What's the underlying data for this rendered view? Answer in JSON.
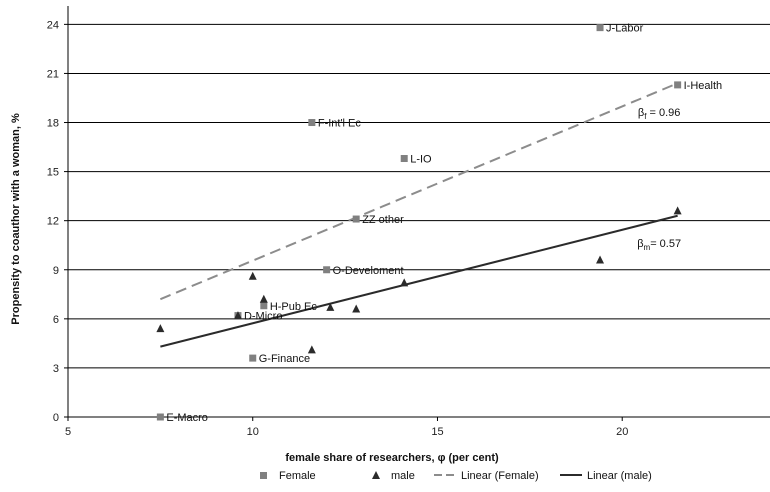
{
  "chart_data": {
    "type": "scatter",
    "title": "",
    "xlabel": "female share of researchers, φ (per cent)",
    "ylabel": "Propensity to coauthor with a woman, %",
    "xlim": [
      5,
      24
    ],
    "ylim": [
      0,
      25
    ],
    "x_ticks": [
      5,
      10,
      15,
      20
    ],
    "y_ticks": [
      0,
      3,
      6,
      9,
      12,
      15,
      18,
      21,
      24
    ],
    "grid": "horizontal",
    "legend_position": "bottom",
    "colors": {
      "female": "#808080",
      "male": "#2b2b2b",
      "trend_female": "#8c8c8c",
      "trend_male": "#2b2b2b",
      "grid": "#000000"
    },
    "series": [
      {
        "name": "Female",
        "marker": "square",
        "points": [
          {
            "x": 7.5,
            "y": 0.0,
            "label": "E-Macro"
          },
          {
            "x": 9.6,
            "y": 6.2,
            "label": "D-Micro"
          },
          {
            "x": 10.0,
            "y": 3.6,
            "label": "G-Finance"
          },
          {
            "x": 10.3,
            "y": 6.8,
            "label": "H-Pub Ec"
          },
          {
            "x": 11.6,
            "y": 18.0,
            "label": "F-Int'l Ec"
          },
          {
            "x": 12.0,
            "y": 9.0,
            "label": "O-Develoment"
          },
          {
            "x": 12.8,
            "y": 12.1,
            "label": "ZZ other"
          },
          {
            "x": 14.1,
            "y": 15.8,
            "label": "L-IO"
          },
          {
            "x": 19.4,
            "y": 23.8,
            "label": "J-Labor"
          },
          {
            "x": 21.5,
            "y": 20.3,
            "label": "I-Health"
          }
        ]
      },
      {
        "name": "male",
        "marker": "triangle",
        "points": [
          {
            "x": 7.5,
            "y": 5.4
          },
          {
            "x": 9.6,
            "y": 6.2
          },
          {
            "x": 10.0,
            "y": 8.6
          },
          {
            "x": 10.3,
            "y": 7.2
          },
          {
            "x": 11.6,
            "y": 4.1
          },
          {
            "x": 12.1,
            "y": 6.7
          },
          {
            "x": 12.8,
            "y": 6.6
          },
          {
            "x": 14.1,
            "y": 8.2
          },
          {
            "x": 19.4,
            "y": 9.6
          },
          {
            "x": 21.5,
            "y": 12.6
          }
        ]
      }
    ],
    "trendlines": [
      {
        "name": "Linear (Female)",
        "style": "dashed",
        "x": [
          7.5,
          21.5
        ],
        "y": [
          7.2,
          20.4
        ],
        "annotation": {
          "text": "βf = 0.96",
          "base": "β",
          "sub": "f",
          "rest": " = 0.96",
          "x": 21.0,
          "y": 18.4
        }
      },
      {
        "name": "Linear (male)",
        "style": "solid",
        "x": [
          7.5,
          21.5
        ],
        "y": [
          4.3,
          12.3
        ],
        "annotation": {
          "text": "βm= 0.57",
          "base": "β",
          "sub": "m",
          "rest": "= 0.57",
          "x": 21.0,
          "y": 10.4
        }
      }
    ]
  }
}
